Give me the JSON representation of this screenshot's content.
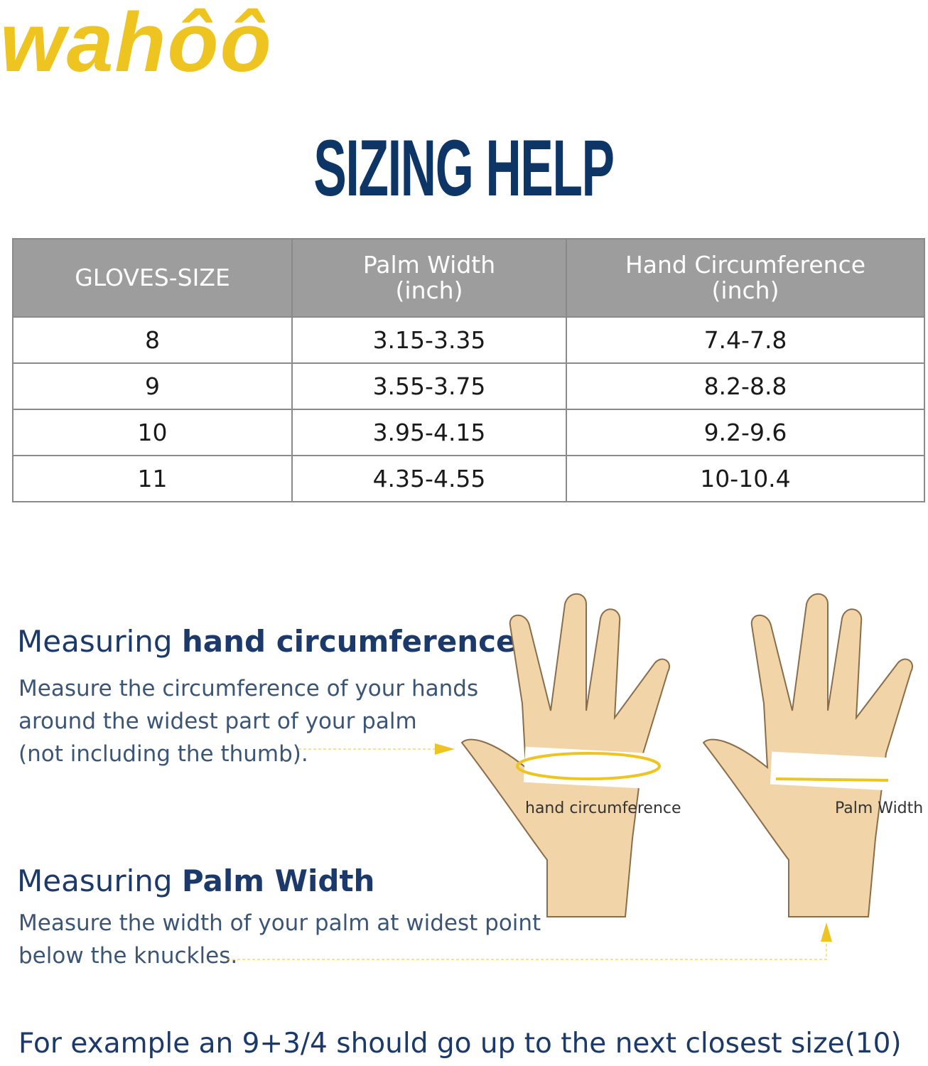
{
  "brand": {
    "logo_text": "wahôô",
    "color": "#EDC420"
  },
  "title": "SIZING HELP",
  "table": {
    "headers": [
      [
        "GLOVES-SIZE",
        ""
      ],
      [
        "Palm Width",
        "(inch)"
      ],
      [
        "Hand Circumference",
        "(inch)"
      ]
    ],
    "rows": [
      [
        "8",
        "3.15-3.35",
        "7.4-7.8"
      ],
      [
        "9",
        "3.55-3.75",
        "8.2-8.8"
      ],
      [
        "10",
        "3.95-4.15",
        "9.2-9.6"
      ],
      [
        "11",
        "4.35-4.55",
        "10-10.4"
      ]
    ]
  },
  "circumference": {
    "heading_pre": "Measuring ",
    "heading_bold": "hand circumference",
    "lines": [
      "Measure the circumference of your hands",
      "around the widest part of your palm",
      "(not including the thumb)."
    ],
    "illustration_label": "hand circumference"
  },
  "palm": {
    "heading_pre": "Measuring ",
    "heading_bold": "Palm Width",
    "lines": [
      "Measure the width of your palm at widest point",
      "below the knuckles."
    ],
    "illustration_label": "Palm Width"
  },
  "footer": "For example an 9+3/4 should go up to the next closest size(10)",
  "colors": {
    "navy": "#0d3566",
    "header_gray": "#9d9d9d",
    "accent": "#EDC420",
    "skin": "#f1d5a8"
  }
}
